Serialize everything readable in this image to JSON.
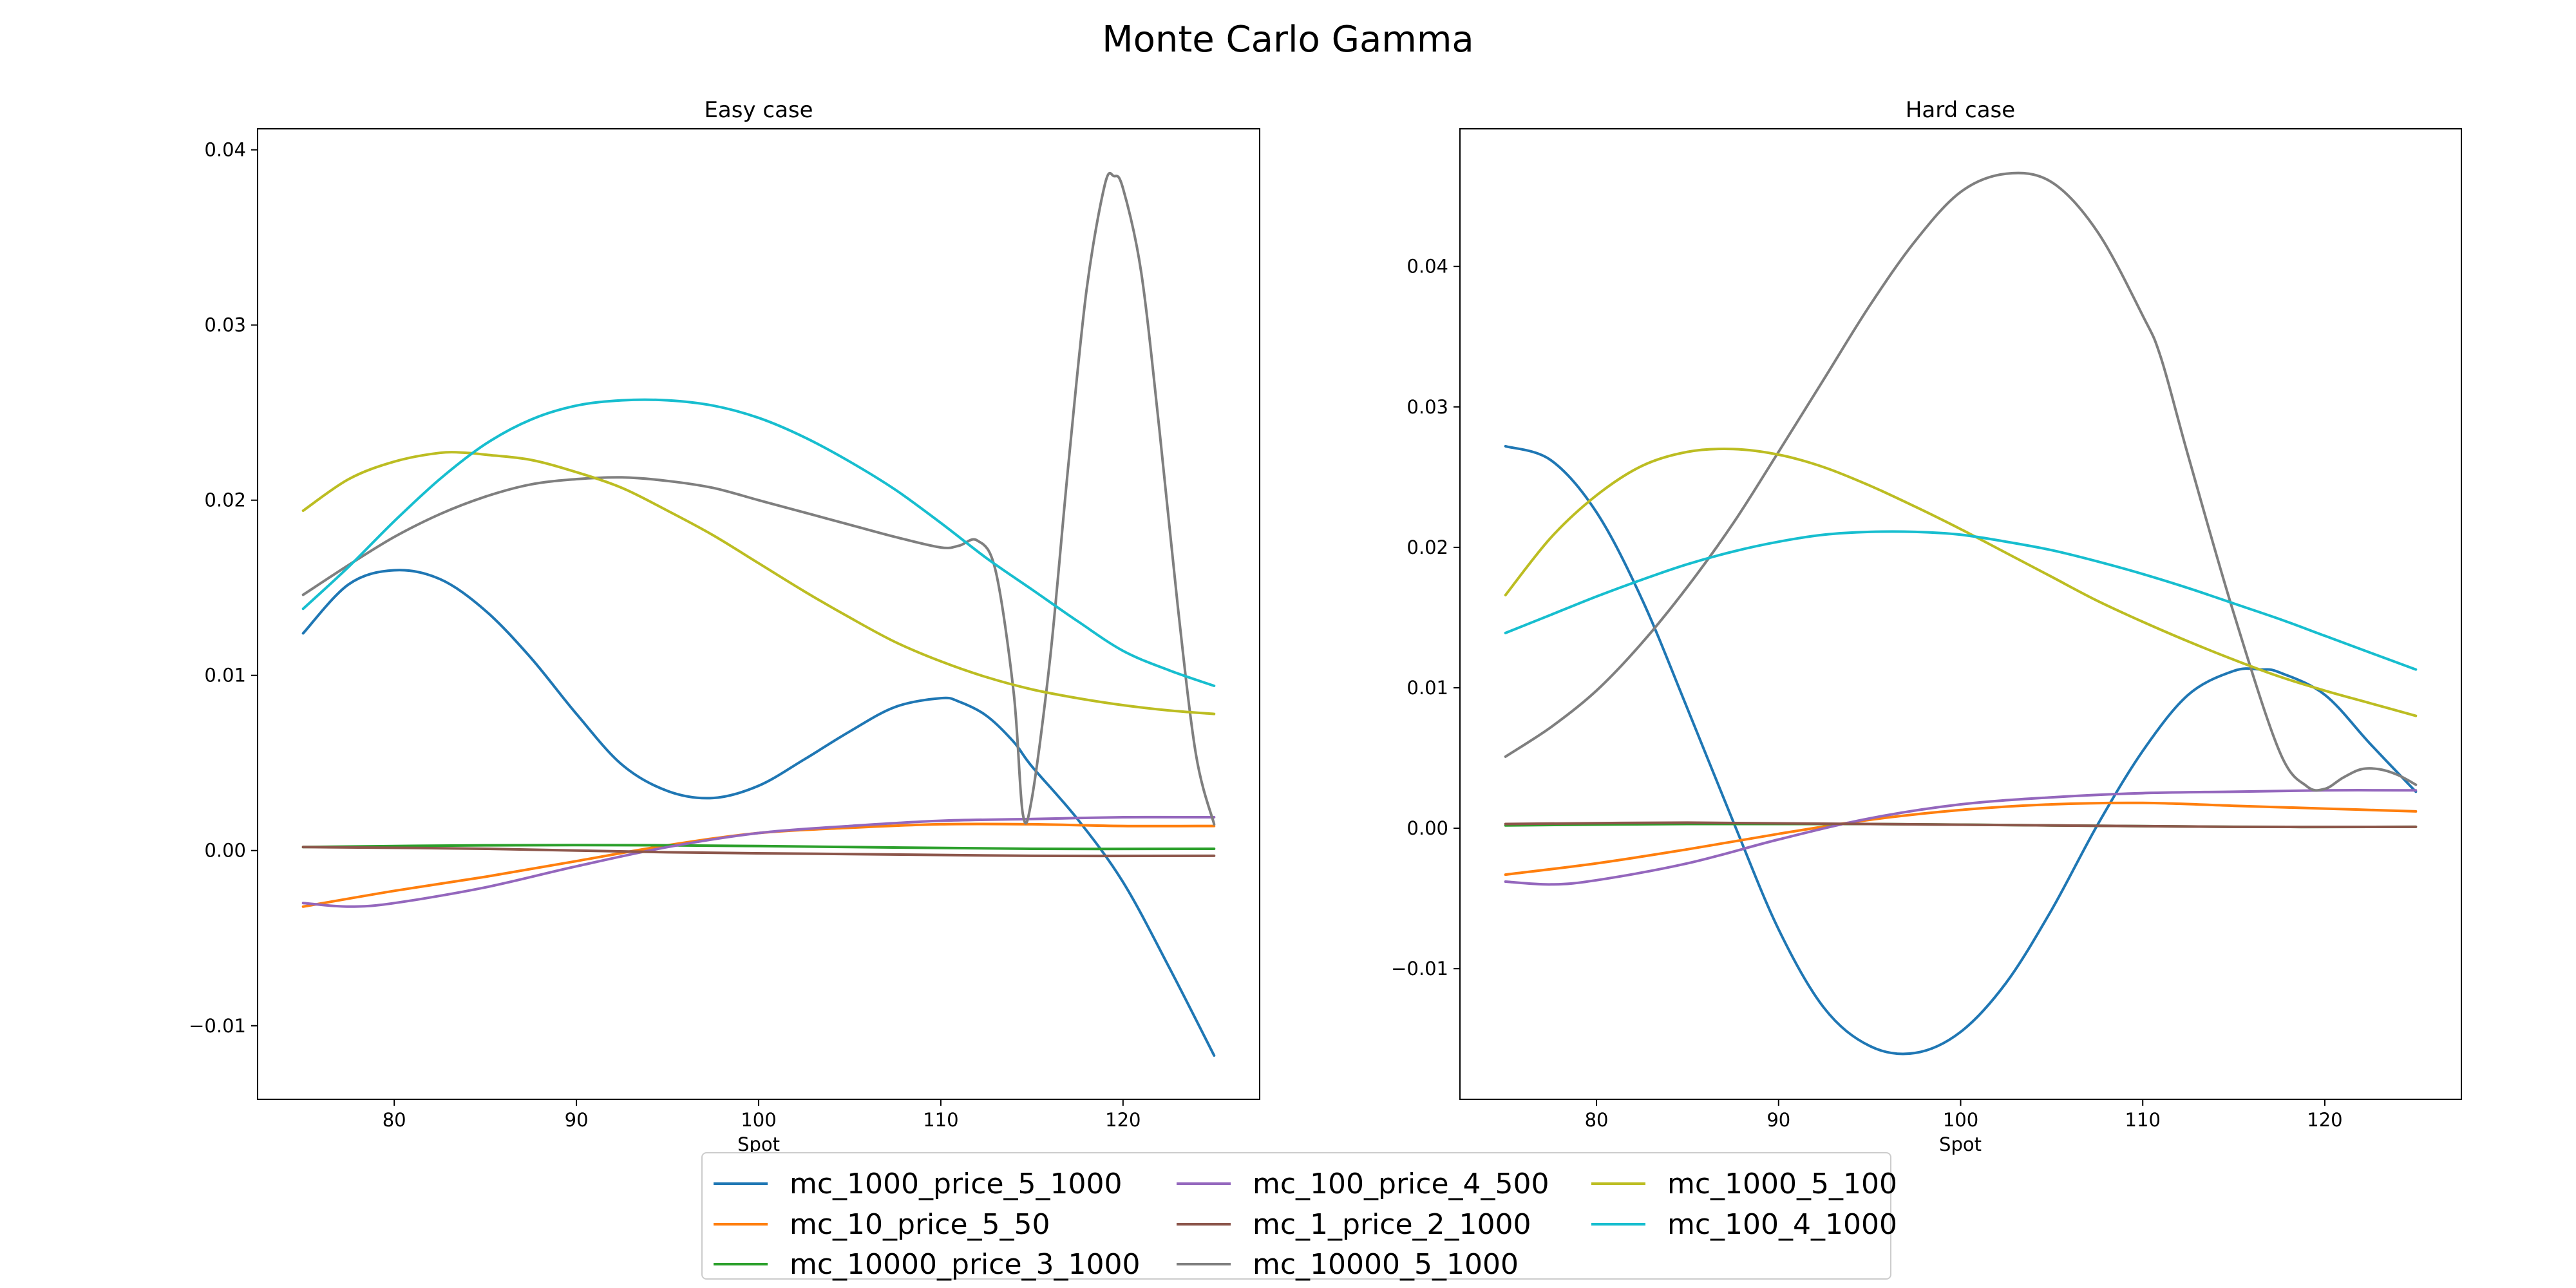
{
  "figure": {
    "title": "Monte Carlo Gamma"
  },
  "legend": {
    "location": "bottom-center",
    "columns": 3,
    "entries": [
      {
        "name": "mc_1000_price_5_1000",
        "color": "#1f77b4"
      },
      {
        "name": "mc_10_price_5_50",
        "color": "#ff7f0e"
      },
      {
        "name": "mc_10000_price_3_1000",
        "color": "#2ca02c"
      },
      {
        "name": "mc_100_price_4_500",
        "color": "#9467bd"
      },
      {
        "name": "mc_1_price_2_1000",
        "color": "#8c564b"
      },
      {
        "name": "mc_10000_5_1000",
        "color": "#7f7f7f"
      },
      {
        "name": "mc_1000_5_100",
        "color": "#bcbd22"
      },
      {
        "name": "mc_100_4_1000",
        "color": "#17becf"
      }
    ]
  },
  "chart_data": [
    {
      "type": "line",
      "title": "Easy case",
      "xlabel": "Spot",
      "ylabel": "",
      "xlim": [
        72.5,
        127.5
      ],
      "ylim": [
        -0.0142,
        0.0412
      ],
      "xticks": [
        80,
        90,
        100,
        110,
        120
      ],
      "yticks": [
        -0.01,
        0.0,
        0.01,
        0.02,
        0.03,
        0.04
      ],
      "xtick_labels": [
        "80",
        "90",
        "100",
        "110",
        "120"
      ],
      "ytick_labels": [
        "−0.01",
        "0.00",
        "0.01",
        "0.02",
        "0.03",
        "0.04"
      ],
      "grid": false,
      "series": [
        {
          "name": "mc_1000_price_5_1000",
          "color": "#1f77b4",
          "x": [
            75,
            77.5,
            80,
            82.5,
            85,
            87.5,
            90,
            92.5,
            95,
            97.5,
            100,
            102.5,
            105,
            107.5,
            110,
            111,
            112.5,
            114,
            115,
            117.5,
            120,
            122.5,
            125
          ],
          "y": [
            0.0124,
            0.0152,
            0.016,
            0.0155,
            0.0137,
            0.011,
            0.0078,
            0.0049,
            0.0034,
            0.003,
            0.0037,
            0.0052,
            0.0068,
            0.0082,
            0.0087,
            0.0085,
            0.0077,
            0.0062,
            0.0048,
            0.0018,
            -0.0018,
            -0.0066,
            -0.0117
          ]
        },
        {
          "name": "mc_10_price_5_50",
          "color": "#ff7f0e",
          "x": [
            75,
            80,
            85,
            90,
            95,
            100,
            105,
            110,
            115,
            120,
            125
          ],
          "y": [
            -0.0032,
            -0.0023,
            -0.0015,
            -0.0006,
            0.0003,
            0.001,
            0.0013,
            0.0015,
            0.0015,
            0.0014,
            0.0014
          ]
        },
        {
          "name": "mc_10000_price_3_1000",
          "color": "#2ca02c",
          "x": [
            75,
            85,
            95,
            105,
            115,
            125
          ],
          "y": [
            0.0002,
            0.0003,
            0.0003,
            0.0002,
            0.0001,
            0.0001
          ]
        },
        {
          "name": "mc_100_price_4_500",
          "color": "#9467bd",
          "x": [
            75,
            77.5,
            80,
            85,
            90,
            95,
            100,
            105,
            110,
            115,
            120,
            125
          ],
          "y": [
            -0.003,
            -0.0032,
            -0.003,
            -0.0021,
            -0.0009,
            0.0002,
            0.001,
            0.0014,
            0.0017,
            0.0018,
            0.0019,
            0.0019
          ]
        },
        {
          "name": "mc_1_price_2_1000",
          "color": "#8c564b",
          "x": [
            75,
            85,
            95,
            105,
            115,
            125
          ],
          "y": [
            0.0002,
            0.0001,
            -0.0001,
            -0.0002,
            -0.0003,
            -0.0003
          ]
        },
        {
          "name": "mc_10000_5_1000",
          "color": "#7f7f7f",
          "x": [
            75,
            77.5,
            80,
            82.5,
            85,
            87.5,
            90,
            92.5,
            95,
            97.5,
            100,
            102.5,
            105,
            107.5,
            110,
            111,
            112,
            113,
            114,
            114.5,
            115,
            116,
            117,
            118,
            119,
            119.5,
            120,
            121,
            122,
            123,
            124,
            125
          ],
          "y": [
            0.0146,
            0.0163,
            0.0179,
            0.0192,
            0.0202,
            0.0209,
            0.0212,
            0.0213,
            0.0211,
            0.0207,
            0.02,
            0.0193,
            0.0186,
            0.0179,
            0.0173,
            0.0174,
            0.0177,
            0.016,
            0.009,
            0.0021,
            0.003,
            0.011,
            0.022,
            0.032,
            0.038,
            0.0385,
            0.0378,
            0.033,
            0.024,
            0.014,
            0.0055,
            0.0015
          ]
        },
        {
          "name": "mc_1000_5_100",
          "color": "#bcbd22",
          "x": [
            75,
            77.5,
            80,
            82.5,
            84,
            85,
            87.5,
            90,
            92.5,
            95,
            97.5,
            100,
            102.5,
            105,
            107.5,
            110,
            112.5,
            115,
            117.5,
            120,
            122.5,
            125
          ],
          "y": [
            0.0194,
            0.0212,
            0.0222,
            0.0227,
            0.0227,
            0.0226,
            0.0223,
            0.0216,
            0.0207,
            0.0194,
            0.018,
            0.0164,
            0.0148,
            0.0133,
            0.0119,
            0.0108,
            0.0099,
            0.0092,
            0.0087,
            0.0083,
            0.008,
            0.0078
          ]
        },
        {
          "name": "mc_100_4_1000",
          "color": "#17becf",
          "x": [
            75,
            77.5,
            80,
            82.5,
            85,
            87.5,
            90,
            92.5,
            95,
            97.5,
            100,
            102.5,
            105,
            107.5,
            110,
            112.5,
            115,
            117.5,
            120,
            122.5,
            125
          ],
          "y": [
            0.0138,
            0.0162,
            0.0188,
            0.0212,
            0.0232,
            0.0246,
            0.0254,
            0.0257,
            0.0257,
            0.0254,
            0.0247,
            0.0236,
            0.0222,
            0.0206,
            0.0187,
            0.0167,
            0.0149,
            0.0131,
            0.0114,
            0.0103,
            0.0094
          ]
        }
      ]
    },
    {
      "type": "line",
      "title": "Hard case",
      "xlabel": "Spot",
      "ylabel": "",
      "xlim": [
        72.5,
        127.5
      ],
      "ylim": [
        -0.0193,
        0.0498
      ],
      "xticks": [
        80,
        90,
        100,
        110,
        120
      ],
      "yticks": [
        -0.01,
        0.0,
        0.01,
        0.02,
        0.03,
        0.04
      ],
      "xtick_labels": [
        "80",
        "90",
        "100",
        "110",
        "120"
      ],
      "ytick_labels": [
        "−0.01",
        "0.00",
        "0.01",
        "0.02",
        "0.03",
        "0.04"
      ],
      "grid": false,
      "series": [
        {
          "name": "mc_1000_price_5_1000",
          "color": "#1f77b4",
          "x": [
            75,
            77.5,
            80,
            82.5,
            85,
            87.5,
            90,
            92.5,
            95,
            97.5,
            100,
            102.5,
            105,
            107.5,
            110,
            112.5,
            115,
            116.5,
            117.5,
            120,
            122.5,
            125
          ],
          "y": [
            0.0272,
            0.0262,
            0.0225,
            0.0163,
            0.0085,
            0.0005,
            -0.0072,
            -0.0128,
            -0.0155,
            -0.016,
            -0.0145,
            -0.011,
            -0.0058,
            0.0002,
            0.0055,
            0.0095,
            0.0112,
            0.0113,
            0.0111,
            0.0095,
            0.006,
            0.0026
          ]
        },
        {
          "name": "mc_10_price_5_50",
          "color": "#ff7f0e",
          "x": [
            75,
            80,
            85,
            90,
            95,
            100,
            105,
            110,
            115,
            120,
            125
          ],
          "y": [
            -0.0033,
            -0.0025,
            -0.0015,
            -0.0004,
            0.0006,
            0.0013,
            0.0017,
            0.0018,
            0.0016,
            0.0014,
            0.0012
          ]
        },
        {
          "name": "mc_10000_price_3_1000",
          "color": "#2ca02c",
          "x": [
            75,
            85,
            95,
            105,
            115,
            125
          ],
          "y": [
            0.0002,
            0.0003,
            0.0003,
            0.0002,
            0.0001,
            0.0001
          ]
        },
        {
          "name": "mc_100_price_4_500",
          "color": "#9467bd",
          "x": [
            75,
            77.5,
            80,
            85,
            90,
            95,
            100,
            105,
            110,
            115,
            120,
            125
          ],
          "y": [
            -0.0038,
            -0.004,
            -0.0037,
            -0.0025,
            -0.0008,
            0.0007,
            0.0017,
            0.0022,
            0.0025,
            0.0026,
            0.0027,
            0.0027
          ]
        },
        {
          "name": "mc_1_price_2_1000",
          "color": "#8c564b",
          "x": [
            75,
            85,
            95,
            105,
            115,
            125
          ],
          "y": [
            0.0003,
            0.0004,
            0.0003,
            0.0002,
            0.0001,
            0.0001
          ]
        },
        {
          "name": "mc_10000_5_1000",
          "color": "#7f7f7f",
          "x": [
            75,
            77.5,
            80,
            82.5,
            85,
            87.5,
            90,
            92.5,
            95,
            97.5,
            100,
            102.5,
            105,
            107.5,
            110,
            111,
            112.5,
            115,
            117.5,
            119,
            120,
            121,
            122,
            123,
            124,
            125
          ],
          "y": [
            0.0051,
            0.0072,
            0.0098,
            0.0132,
            0.0172,
            0.0217,
            0.0268,
            0.032,
            0.0372,
            0.0418,
            0.0453,
            0.0466,
            0.046,
            0.0425,
            0.0365,
            0.0335,
            0.0265,
            0.0153,
            0.0055,
            0.003,
            0.0028,
            0.0036,
            0.0042,
            0.0042,
            0.0038,
            0.0031
          ]
        },
        {
          "name": "mc_1000_5_100",
          "color": "#bcbd22",
          "x": [
            75,
            77.5,
            80,
            82.5,
            85,
            87.5,
            90,
            92.5,
            95,
            97.5,
            100,
            102.5,
            105,
            107.5,
            110,
            112.5,
            115,
            117.5,
            120,
            122.5,
            125
          ],
          "y": [
            0.0166,
            0.0207,
            0.0237,
            0.0258,
            0.0268,
            0.027,
            0.0266,
            0.0257,
            0.0244,
            0.0229,
            0.0213,
            0.0196,
            0.0179,
            0.0162,
            0.0147,
            0.0133,
            0.012,
            0.0108,
            0.0098,
            0.0089,
            0.008
          ]
        },
        {
          "name": "mc_100_4_1000",
          "color": "#17becf",
          "x": [
            75,
            77.5,
            80,
            82.5,
            85,
            87.5,
            90,
            92.5,
            95,
            97.5,
            100,
            102.5,
            105,
            107.5,
            110,
            112.5,
            115,
            117.5,
            120,
            122.5,
            125
          ],
          "y": [
            0.0139,
            0.0152,
            0.0165,
            0.0177,
            0.0188,
            0.0197,
            0.0204,
            0.0209,
            0.0211,
            0.0211,
            0.0209,
            0.0204,
            0.0198,
            0.019,
            0.0181,
            0.0171,
            0.016,
            0.0149,
            0.0137,
            0.0125,
            0.0113
          ]
        }
      ]
    }
  ]
}
